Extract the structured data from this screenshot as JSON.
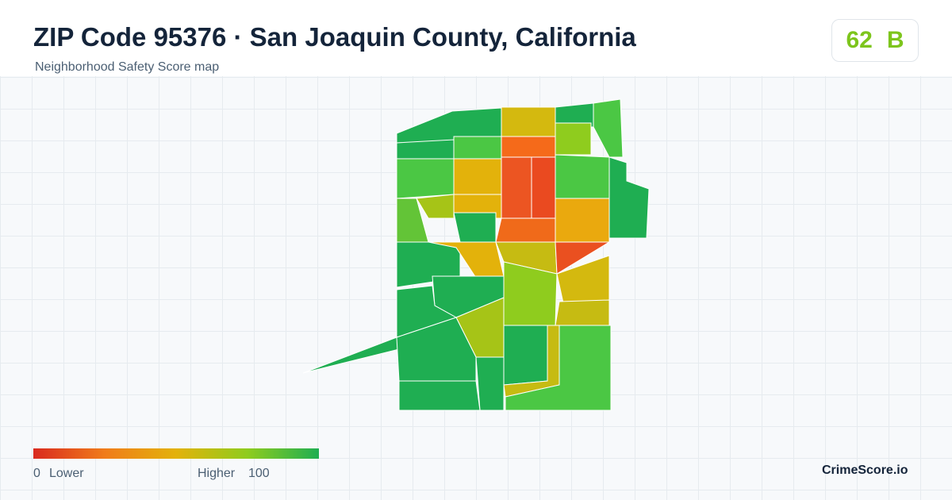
{
  "header": {
    "title": "ZIP Code 95376 · San Joaquin County, California",
    "subtitle": "Neighborhood Safety Score map"
  },
  "score": {
    "value": "62",
    "grade": "B"
  },
  "legend": {
    "min": "0",
    "min_label": "Lower",
    "max_label": "Higher",
    "max": "100"
  },
  "footer": {
    "brand": "CrimeScore.io"
  }
}
